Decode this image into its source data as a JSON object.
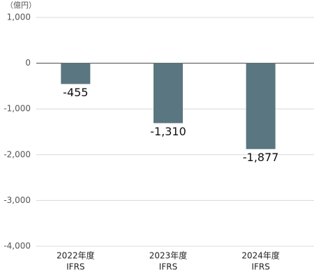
{
  "chart_data": {
    "type": "bar",
    "unit_label": "（億円）",
    "categories": [
      "2022年度",
      "2023年度",
      "2024年度"
    ],
    "category_sublabels": [
      "IFRS",
      "IFRS",
      "IFRS"
    ],
    "values": [
      -455,
      -1310,
      -1877
    ],
    "value_labels": [
      "-455",
      "-1,310",
      "-1,877"
    ],
    "color": "#5a7680",
    "ylim": [
      -4000,
      1000
    ],
    "yticks": [
      {
        "value": 1000,
        "label": "1,000"
      },
      0,
      {
        "value": -1000,
        "label": "-1,000"
      },
      {
        "value": -2000,
        "label": "-2,000"
      },
      {
        "value": -3000,
        "label": "-3,000"
      },
      {
        "value": -4000,
        "label": "-4,000"
      }
    ],
    "grid": true
  }
}
